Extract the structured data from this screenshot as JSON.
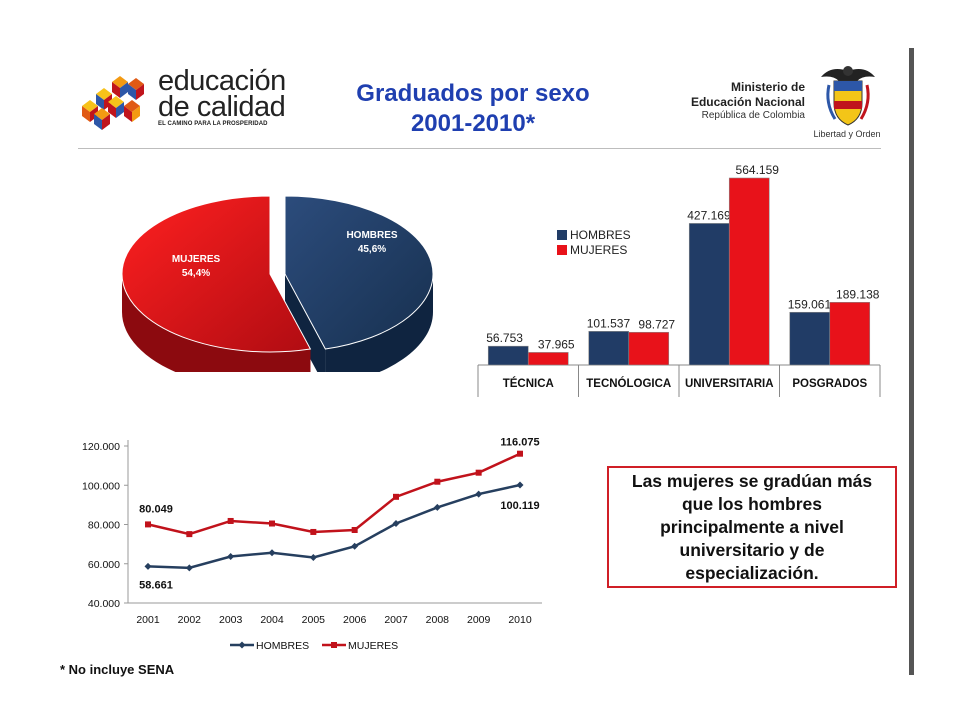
{
  "header": {
    "logo": {
      "line1": "educación",
      "line2": "de calidad",
      "tagline": "EL CAMINO PARA LA PROSPERIDAD"
    },
    "title_line1": "Graduados por sexo",
    "title_line2": "2001-2010*",
    "ministry": {
      "line1": "Ministerio de",
      "line2": "Educación Nacional",
      "line3": "República de Colombia"
    },
    "shield_caption": "Libertad y Orden"
  },
  "colors": {
    "hombres": "#213c66",
    "mujeres": "#e8121a",
    "line_hombres": "#263f5f",
    "line_mujeres": "#c1121b",
    "title": "#1f3fb0"
  },
  "chart_data": [
    {
      "type": "pie",
      "slices": [
        {
          "label": "HOMBRES",
          "pct_label": "45,6%",
          "value": 45.6
        },
        {
          "label": "MUJERES",
          "pct_label": "54,4%",
          "value": 54.4
        }
      ]
    },
    {
      "type": "bar",
      "categories": [
        "TÉCNICA",
        "TECNÓLOGICA",
        "UNIVERSITARIA",
        "POSGRADOS"
      ],
      "series": [
        {
          "name": "HOMBRES",
          "values": [
            56753,
            101537,
            427169,
            159061
          ],
          "labels": [
            "56.753",
            "101.537",
            "427.169",
            "159.061"
          ]
        },
        {
          "name": "MUJERES",
          "values": [
            37965,
            98727,
            564159,
            189138
          ],
          "labels": [
            "37.965",
            "98.727",
            "564.159",
            "189.138"
          ]
        }
      ],
      "legend": "top-left",
      "ylim": [
        0,
        564159
      ]
    },
    {
      "type": "line",
      "x": [
        "2001",
        "2002",
        "2003",
        "2004",
        "2005",
        "2006",
        "2007",
        "2008",
        "2009",
        "2010"
      ],
      "series": [
        {
          "name": "HOMBRES",
          "values": [
            58661,
            57900,
            63700,
            65600,
            63200,
            68900,
            80500,
            88700,
            95500,
            100119
          ]
        },
        {
          "name": "MUJERES",
          "values": [
            80049,
            75100,
            81800,
            80500,
            76200,
            77200,
            94100,
            101800,
            106400,
            116075
          ]
        }
      ],
      "yticks": [
        "40.000",
        "60.000",
        "80.000",
        "100.000",
        "120.000"
      ],
      "ylim": [
        40000,
        120000
      ],
      "annotations": [
        {
          "series": "MUJERES",
          "index": 0,
          "text": "80.049"
        },
        {
          "series": "HOMBRES",
          "index": 0,
          "text": "58.661"
        },
        {
          "series": "MUJERES",
          "index": 9,
          "text": "116.075"
        },
        {
          "series": "HOMBRES",
          "index": 9,
          "text": "100.119"
        }
      ],
      "legend": "bottom"
    }
  ],
  "callout": "Las mujeres se gradúan más que los hombres principalmente a nivel universitario y de especialización.",
  "note": "* No incluye SENA"
}
